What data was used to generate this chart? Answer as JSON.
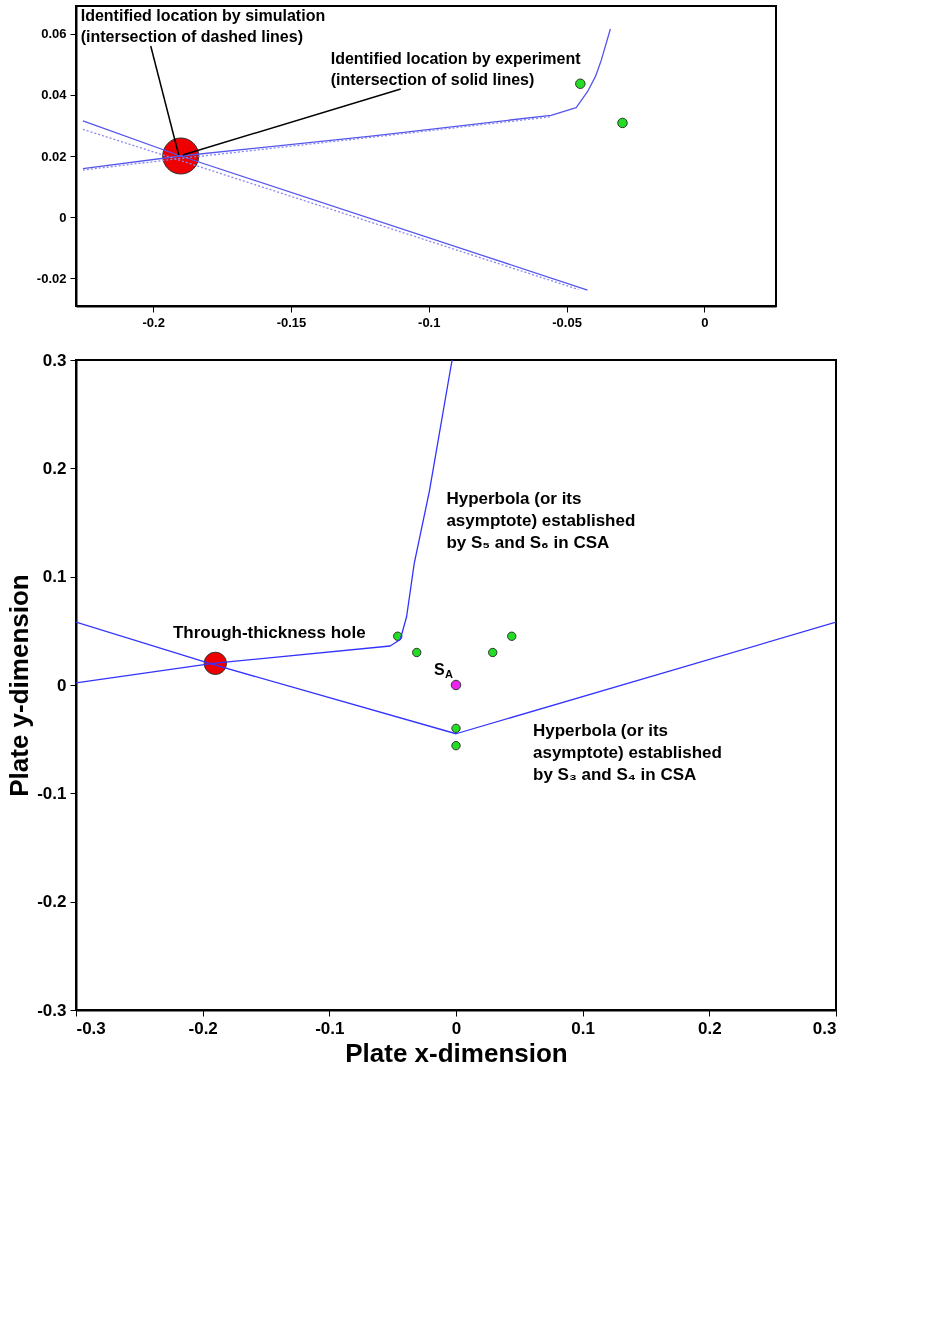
{
  "chart_data": [
    {
      "type": "line",
      "grid": false,
      "xlim": [
        -0.228,
        0.026
      ],
      "ylim": [
        -0.029,
        0.069
      ],
      "xticks": [
        -0.2,
        -0.15,
        -0.1,
        -0.05,
        0
      ],
      "yticks": [
        -0.02,
        0,
        0.02,
        0.04,
        0.06
      ],
      "series": [
        {
          "color": "#5555ee",
          "line_style": "solid",
          "x": [
            -0.2255,
            -0.19,
            -0.12,
            -0.0556,
            -0.0465,
            -0.0424,
            -0.0395,
            -0.0374,
            -0.0341
          ],
          "values": [
            0.0159,
            0.02,
            0.0266,
            0.0333,
            0.0358,
            0.041,
            0.046,
            0.0513,
            0.0615
          ]
        },
        {
          "color": "#5555ee",
          "line_style": "solid",
          "x": [
            -0.2255,
            -0.19,
            -0.0424
          ],
          "values": [
            0.0315,
            0.02,
            -0.0238
          ]
        },
        {
          "color": "#8888ee",
          "line_style": "dotted",
          "x": [
            -0.2255,
            -0.19,
            -0.12,
            -0.0556
          ],
          "values": [
            0.0154,
            0.0192,
            0.0262,
            0.0328
          ]
        },
        {
          "color": "#8888ee",
          "line_style": "dotted",
          "x": [
            -0.2255,
            -0.19,
            -0.0457
          ],
          "values": [
            0.0287,
            0.0185,
            -0.0236
          ]
        },
        {
          "type": "scatter",
          "marker": "circle",
          "color": "#22dd22",
          "x": [
            -0.045,
            -0.0297
          ],
          "values": [
            0.0436,
            0.0308
          ]
        },
        {
          "type": "scatter",
          "marker": "circle",
          "color": "#ee0000",
          "x": [
            -0.19
          ],
          "values": [
            0.02
          ]
        }
      ],
      "annotations": [
        {
          "text": "Identified location by simulation\n(intersection of dashed lines)",
          "x": -0.19,
          "y": 0.02
        },
        {
          "text": "Identified location by experiment\n(intersection of solid lines)",
          "x": -0.19,
          "y": 0.02
        }
      ]
    },
    {
      "type": "line",
      "grid": false,
      "xlabel": "Plate x-dimension",
      "ylabel": "Plate y-dimension",
      "xlim": [
        -0.3,
        0.3
      ],
      "ylim": [
        -0.3,
        0.3
      ],
      "xticks": [
        -0.3,
        -0.2,
        -0.1,
        0,
        0.1,
        0.2,
        0.3
      ],
      "yticks": [
        -0.3,
        -0.2,
        -0.1,
        0,
        0.1,
        0.2,
        0.3
      ],
      "series": [
        {
          "color": "#3333ff",
          "line_style": "solid",
          "x": [
            -0.3,
            -0.192,
            -0.052,
            -0.044,
            -0.039,
            -0.033,
            -0.021,
            -0.004,
            -0.003
          ],
          "values": [
            0.002,
            0.02,
            0.036,
            0.042,
            0.063,
            0.112,
            0.179,
            0.294,
            0.3
          ]
        },
        {
          "color": "#3333ff",
          "line_style": "solid",
          "x": [
            -0.3,
            -0.192,
            0,
            0.3
          ],
          "values": [
            0.058,
            0.019,
            -0.045,
            0.058
          ]
        },
        {
          "type": "scatter",
          "marker": "circle",
          "color": "#22dd22",
          "x": [
            -0.046,
            -0.031,
            0.029,
            0.044,
            0,
            0
          ],
          "values": [
            0.045,
            0.03,
            0.03,
            0.045,
            -0.04,
            -0.056
          ]
        },
        {
          "type": "scatter",
          "marker": "circle",
          "color": "#ee22ee",
          "x": [
            0
          ],
          "values": [
            0
          ]
        },
        {
          "type": "scatter",
          "marker": "circle",
          "color": "#ee0000",
          "x": [
            -0.19
          ],
          "values": [
            0.02
          ]
        }
      ],
      "annotations": [
        {
          "text": "Through-thickness hole",
          "x": -0.19,
          "y": 0.02
        },
        {
          "text": "Hyperbola (or its\nasymptote) established\nby S₅ and S₆ in CSA",
          "x": -0.021,
          "y": 0.179
        },
        {
          "text": "Hyperbola (or its\nasymptote) established\nby S₃ and S₄ in CSA",
          "x": 0.06,
          "y": -0.0244
        },
        {
          "text": "S$_{A}$",
          "x": 0,
          "y": 0
        }
      ]
    }
  ]
}
